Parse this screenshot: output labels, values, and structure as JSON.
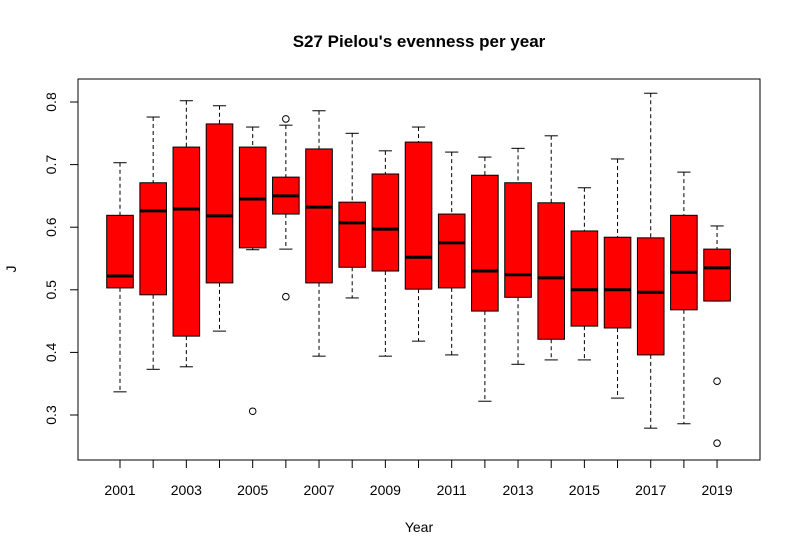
{
  "chart_data": {
    "type": "boxplot",
    "title": "S27 Pielou's evenness per year",
    "xlabel": "Year",
    "ylabel": "J",
    "ylim": [
      0.25,
      0.83
    ],
    "yticks": [
      "0.3",
      "0.4",
      "0.5",
      "0.6",
      "0.7",
      "0.8"
    ],
    "box_color": "#ff0000",
    "categories": [
      "2001",
      "2002",
      "2003",
      "2004",
      "2005",
      "2006",
      "2007",
      "2008",
      "2009",
      "2010",
      "2011",
      "2012",
      "2013",
      "2014",
      "2015",
      "2016",
      "2017",
      "2018",
      "2019"
    ],
    "xtick_labels": [
      "2001",
      "",
      "2003",
      "",
      "2005",
      "",
      "2007",
      "",
      "2009",
      "",
      "2011",
      "",
      "2013",
      "",
      "2015",
      "",
      "2017",
      "",
      "2019"
    ],
    "boxes": [
      {
        "low": 0.337,
        "q1": 0.503,
        "median": 0.522,
        "q3": 0.619,
        "high": 0.703,
        "outliers": []
      },
      {
        "low": 0.373,
        "q1": 0.492,
        "median": 0.626,
        "q3": 0.671,
        "high": 0.776,
        "outliers": []
      },
      {
        "low": 0.377,
        "q1": 0.426,
        "median": 0.629,
        "q3": 0.728,
        "high": 0.802,
        "outliers": []
      },
      {
        "low": 0.434,
        "q1": 0.511,
        "median": 0.618,
        "q3": 0.765,
        "high": 0.794,
        "outliers": []
      },
      {
        "low": 0.564,
        "q1": 0.567,
        "median": 0.645,
        "q3": 0.728,
        "high": 0.76,
        "outliers": [
          0.306
        ]
      },
      {
        "low": 0.565,
        "q1": 0.621,
        "median": 0.65,
        "q3": 0.68,
        "high": 0.763,
        "outliers": [
          0.773,
          0.489
        ]
      },
      {
        "low": 0.394,
        "q1": 0.511,
        "median": 0.632,
        "q3": 0.725,
        "high": 0.786,
        "outliers": []
      },
      {
        "low": 0.487,
        "q1": 0.536,
        "median": 0.607,
        "q3": 0.64,
        "high": 0.75,
        "outliers": []
      },
      {
        "low": 0.394,
        "q1": 0.53,
        "median": 0.597,
        "q3": 0.685,
        "high": 0.722,
        "outliers": []
      },
      {
        "low": 0.418,
        "q1": 0.501,
        "median": 0.552,
        "q3": 0.736,
        "high": 0.76,
        "outliers": []
      },
      {
        "low": 0.396,
        "q1": 0.503,
        "median": 0.575,
        "q3": 0.621,
        "high": 0.72,
        "outliers": []
      },
      {
        "low": 0.322,
        "q1": 0.466,
        "median": 0.53,
        "q3": 0.683,
        "high": 0.712,
        "outliers": []
      },
      {
        "low": 0.381,
        "q1": 0.488,
        "median": 0.524,
        "q3": 0.671,
        "high": 0.726,
        "outliers": []
      },
      {
        "low": 0.388,
        "q1": 0.421,
        "median": 0.519,
        "q3": 0.639,
        "high": 0.746,
        "outliers": []
      },
      {
        "low": 0.388,
        "q1": 0.442,
        "median": 0.5,
        "q3": 0.594,
        "high": 0.663,
        "outliers": []
      },
      {
        "low": 0.327,
        "q1": 0.439,
        "median": 0.5,
        "q3": 0.584,
        "high": 0.709,
        "outliers": []
      },
      {
        "low": 0.279,
        "q1": 0.396,
        "median": 0.496,
        "q3": 0.583,
        "high": 0.814,
        "outliers": []
      },
      {
        "low": 0.286,
        "q1": 0.468,
        "median": 0.528,
        "q3": 0.619,
        "high": 0.688,
        "outliers": []
      },
      {
        "low": 0.482,
        "q1": 0.482,
        "median": 0.535,
        "q3": 0.565,
        "high": 0.602,
        "outliers": [
          0.354,
          0.255
        ]
      }
    ]
  }
}
